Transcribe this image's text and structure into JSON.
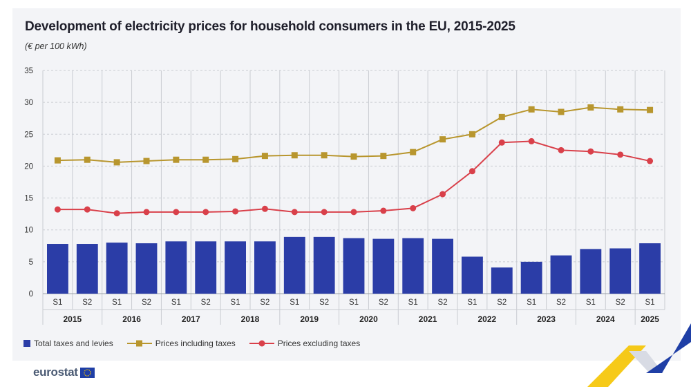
{
  "title": "Development of electricity prices for household consumers in the EU, 2015-2025",
  "subtitle": "(€ per 100 kWh)",
  "legend": {
    "taxes": "Total taxes and levies",
    "incl": "Prices including taxes",
    "excl": "Prices excluding taxes"
  },
  "brand": {
    "name": "eurostat"
  },
  "colors": {
    "bar": "#2b3da7",
    "incl": "#b8962e",
    "excl": "#d9404a",
    "grid": "#c9ccd2",
    "panel": "#f3f4f7",
    "corner_yellow": "#f5c400",
    "corner_blue": "#1f3fa6"
  },
  "chart_data": {
    "type": "bar",
    "title": "Development of electricity prices for household consumers in the EU, 2015-2025",
    "subtitle": "(€ per 100 kWh)",
    "categories": [
      "S1",
      "S2",
      "S1",
      "S2",
      "S1",
      "S2",
      "S1",
      "S2",
      "S1",
      "S2",
      "S1",
      "S2",
      "S1",
      "S2",
      "S1",
      "S2",
      "S1",
      "S2",
      "S1",
      "S2",
      "S1"
    ],
    "years": [
      "2015",
      "2016",
      "2017",
      "2018",
      "2019",
      "2020",
      "2021",
      "2022",
      "2023",
      "2024",
      "2025"
    ],
    "ylim": [
      0,
      35
    ],
    "yticks": [
      0,
      5,
      10,
      15,
      20,
      25,
      30,
      35
    ],
    "grid": true,
    "legend_position": "bottom-left",
    "series": [
      {
        "name": "Total taxes and levies",
        "type": "bar",
        "values": [
          7.8,
          7.8,
          8.0,
          7.9,
          8.2,
          8.2,
          8.2,
          8.2,
          8.9,
          8.9,
          8.7,
          8.6,
          8.7,
          8.6,
          5.8,
          4.1,
          5.0,
          6.0,
          7.0,
          7.1,
          7.9
        ]
      },
      {
        "name": "Prices including taxes",
        "type": "line",
        "marker": "square",
        "values": [
          20.9,
          21.0,
          20.6,
          20.8,
          21.0,
          21.0,
          21.1,
          21.6,
          21.7,
          21.7,
          21.5,
          21.6,
          22.2,
          24.2,
          25.0,
          27.7,
          28.9,
          28.5,
          29.2,
          28.9,
          28.8
        ]
      },
      {
        "name": "Prices excluding taxes",
        "type": "line",
        "marker": "circle",
        "values": [
          13.2,
          13.2,
          12.6,
          12.8,
          12.8,
          12.8,
          12.9,
          13.3,
          12.8,
          12.8,
          12.8,
          13.0,
          13.4,
          15.6,
          19.2,
          23.7,
          23.9,
          22.5,
          22.3,
          21.8,
          20.8
        ]
      }
    ]
  }
}
